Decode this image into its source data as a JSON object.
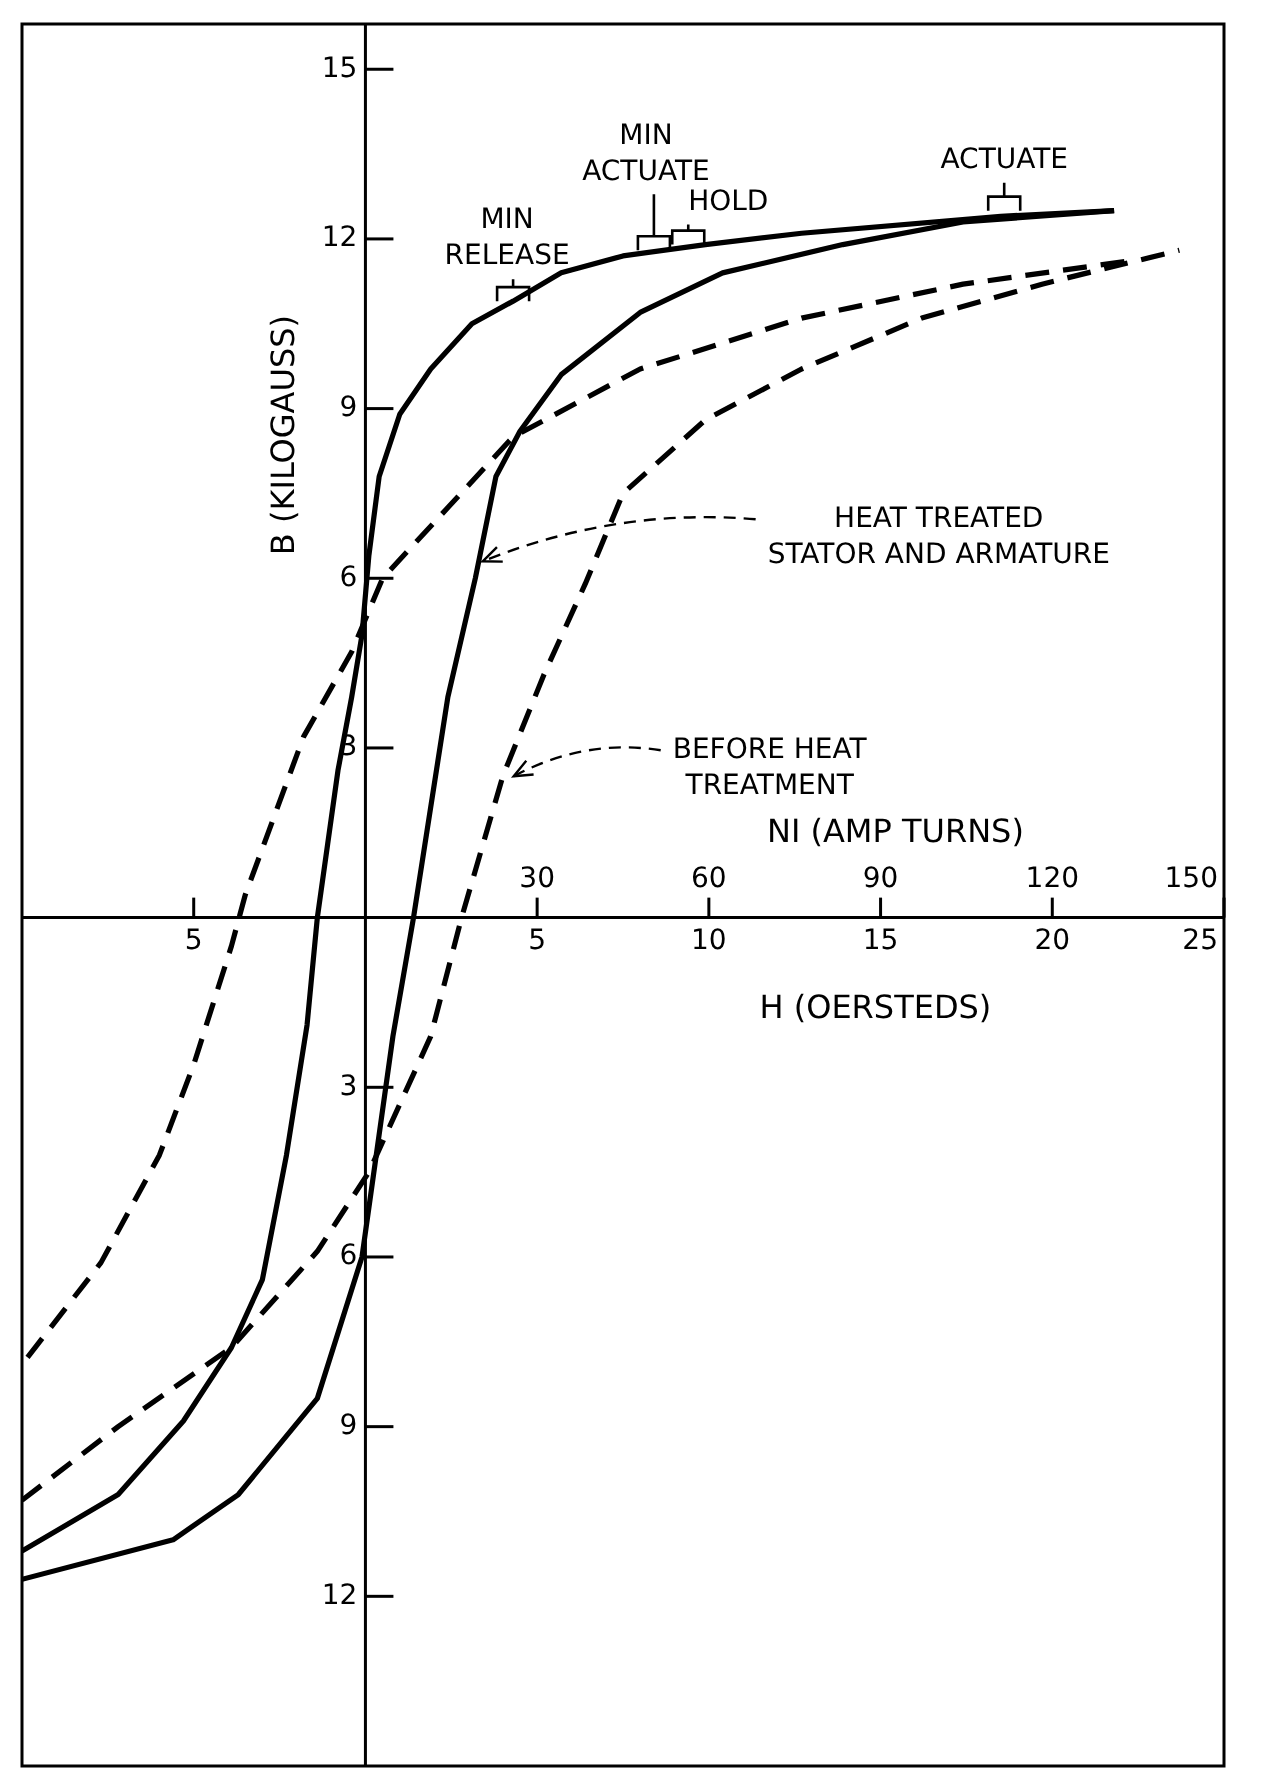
{
  "chart_data": {
    "type": "line",
    "xlabel": "H (OERSTEDS)",
    "x2label": "NI (AMP TURNS)",
    "ylabel": "B (KILOGAUSS)",
    "xlim": [
      -10,
      25
    ],
    "xticks": [
      {
        "value": -5,
        "label": "5"
      },
      5,
      10,
      15,
      20,
      25
    ],
    "x2lim": [
      -60,
      150
    ],
    "x2ticks": [
      30,
      60,
      90,
      120,
      150
    ],
    "ylim": [
      -15,
      15.8
    ],
    "yticks": [
      15,
      12,
      9,
      6,
      3,
      {
        "value": -3,
        "label": "3"
      },
      {
        "value": -6,
        "label": "6"
      },
      {
        "value": -9,
        "label": "9"
      },
      {
        "value": -12,
        "label": "12"
      }
    ],
    "legend": false,
    "marker": "none",
    "series": [
      {
        "type": "line",
        "color": "#000000",
        "line_style": "solid",
        "x": [
          21.8,
          18.5,
          12.7,
          9.9,
          7.5,
          5.7,
          4.3,
          3.1,
          1.9,
          1.0,
          0.4,
          0.1,
          -0.1,
          -0.4,
          -0.8,
          -1.1,
          -1.4,
          -1.7,
          -2.3,
          -3.0,
          -3.9,
          -5.3,
          -7.2,
          -10
        ],
        "values": [
          12.5,
          12.4,
          12.1,
          11.9,
          11.7,
          11.4,
          10.9,
          10.5,
          9.7,
          8.9,
          7.8,
          6.4,
          5.0,
          3.9,
          2.6,
          1.3,
          0,
          -1.9,
          -4.2,
          -6.4,
          -7.6,
          -8.9,
          -10.2,
          -11.2
        ]
      },
      {
        "type": "line",
        "color": "#000000",
        "line_style": "solid",
        "x": [
          -10,
          -5.6,
          -3.7,
          -1.4,
          -0.1,
          0.8,
          1.4,
          2.4,
          3.2,
          3.8,
          4.5,
          5.7,
          8.0,
          10.4,
          13.9,
          17.4,
          21.8
        ],
        "values": [
          -11.7,
          -11.0,
          -10.2,
          -8.5,
          -6.0,
          -2.1,
          0,
          3.9,
          6.0,
          7.8,
          8.6,
          9.6,
          10.7,
          11.4,
          11.9,
          12.3,
          12.5
        ]
      },
      {
        "type": "line",
        "color": "#000000",
        "line_style": "dashed",
        "x": [
          22.1,
          17.4,
          12.7,
          8.0,
          4.3,
          0.5,
          -0.4,
          -1.8,
          -3.5,
          -3.9,
          -5.0,
          -6.0,
          -7.7,
          -10
        ],
        "values": [
          11.6,
          11.2,
          10.6,
          9.7,
          8.5,
          6.0,
          4.7,
          3.2,
          0.4,
          -0.5,
          -2.6,
          -4.2,
          -6.1,
          -7.9
        ]
      },
      {
        "type": "line",
        "color": "#000000",
        "line_style": "dashed",
        "x": [
          -10,
          -7.2,
          -3.9,
          -1.4,
          0.1,
          1.9,
          2.8,
          4.0,
          5.2,
          6.4,
          7.5,
          9.9,
          12.7,
          16.2,
          19.7,
          23.7
        ],
        "values": [
          -10.3,
          -9.0,
          -7.6,
          -5.9,
          -4.5,
          -2.1,
          0,
          2.5,
          4.3,
          5.9,
          7.5,
          8.8,
          9.7,
          10.6,
          11.2,
          11.8
        ]
      }
    ],
    "annotations": [
      {
        "text": "HEAT TREATED\nSTATOR AND ARMATURE",
        "x": 3.3,
        "y": 6.3
      },
      {
        "text": "BEFORE HEAT\nTREATMENT",
        "x": 4.2,
        "y": 2.5
      },
      {
        "text": "MIN\nRELEASE",
        "x": 4.3,
        "y": 10.9
      },
      {
        "text": "MIN\nACTUATE",
        "x": 8.4,
        "y": 11.8
      },
      {
        "text": "HOLD",
        "x": 9.4,
        "y": 11.9
      },
      {
        "text": "ACTUATE",
        "x": 18.6,
        "y": 12.5
      }
    ]
  }
}
